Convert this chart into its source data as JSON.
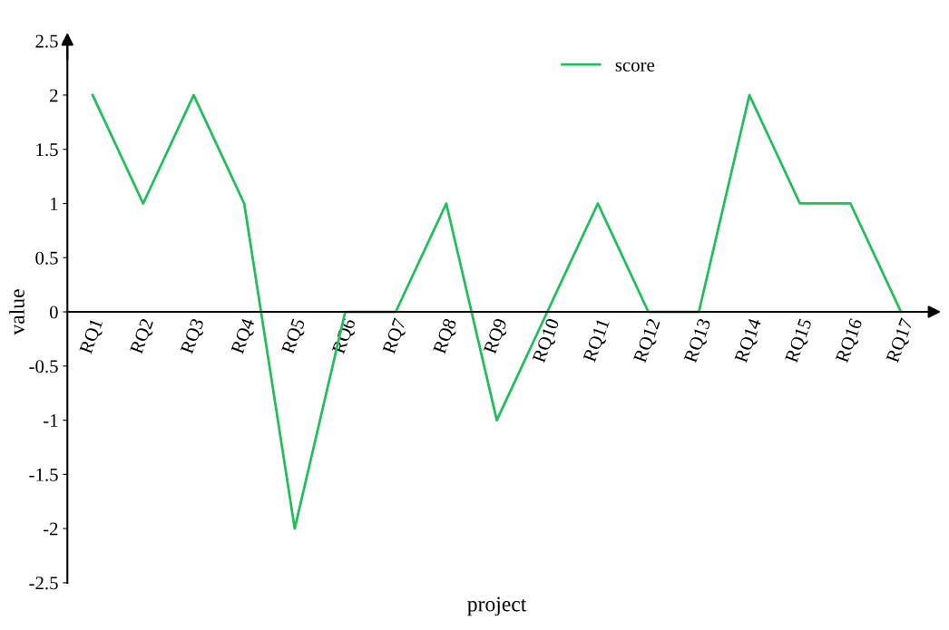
{
  "chart_data": {
    "type": "line",
    "xlabel": "project",
    "ylabel": "value",
    "categories": [
      "RQ1",
      "RQ2",
      "RQ3",
      "RQ4",
      "RQ5",
      "RQ6",
      "RQ7",
      "RQ8",
      "RQ9",
      "RQ10",
      "RQ11",
      "RQ12",
      "RQ13",
      "RQ14",
      "RQ15",
      "RQ16",
      "RQ17"
    ],
    "series": [
      {
        "name": "score",
        "color": "#1fbf5a",
        "values": [
          2,
          1,
          2,
          1,
          -2,
          0,
          0,
          1,
          -1,
          0,
          1,
          0,
          0,
          2,
          1,
          1,
          0
        ]
      }
    ],
    "ylim": [
      -2.5,
      2.5
    ],
    "yticks": [
      -2.5,
      -2,
      -1.5,
      -1,
      -0.5,
      0,
      0.5,
      1,
      1.5,
      2,
      2.5
    ],
    "grid": false,
    "legend": "top",
    "marker": "none",
    "line_style": "solid"
  }
}
